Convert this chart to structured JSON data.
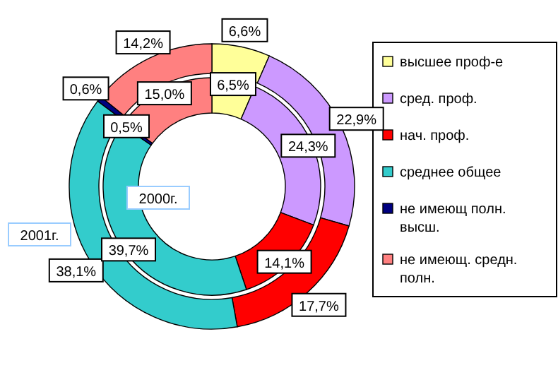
{
  "chart_data": {
    "type": "donut",
    "categories": [
      "высшее проф-е",
      "сред. проф.",
      "нач. проф.",
      "среднее общее",
      "не имеющ полн. высш.",
      "не имеющ. средн. полн."
    ],
    "colors": [
      "#ffff99",
      "#cc99ff",
      "#ff0000",
      "#33cccc",
      "#000080",
      "#ff8080"
    ],
    "series": [
      {
        "name": "2001г.",
        "values": [
          6.6,
          22.9,
          17.7,
          38.1,
          0.6,
          14.2
        ],
        "value_labels": [
          "6,6%",
          "22,9%",
          "17,7%",
          "38,1%",
          "0,6%",
          "14,2%"
        ]
      },
      {
        "name": "2000г.",
        "values": [
          6.5,
          24.3,
          14.1,
          39.7,
          0.5,
          15.0
        ],
        "value_labels": [
          "6,5%",
          "24,3%",
          "14,1%",
          "39,7%",
          "0,5%",
          "15,0%"
        ]
      }
    ],
    "legend": "right"
  }
}
